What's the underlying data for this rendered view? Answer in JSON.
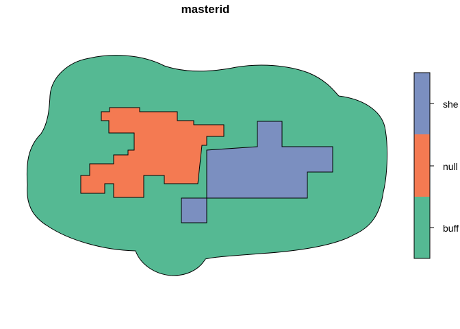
{
  "title": "masterid",
  "legend": {
    "title": "",
    "items": [
      {
        "label": "she",
        "color": "#7B8FC0"
      },
      {
        "label": "null",
        "color": "#F47A52"
      },
      {
        "label": "buff",
        "color": "#55B993"
      }
    ]
  },
  "regions": [
    {
      "name": "buff",
      "color": "#55B993"
    },
    {
      "name": "null",
      "color": "#F47A52"
    },
    {
      "name": "she",
      "color": "#7B8FC0"
    }
  ]
}
